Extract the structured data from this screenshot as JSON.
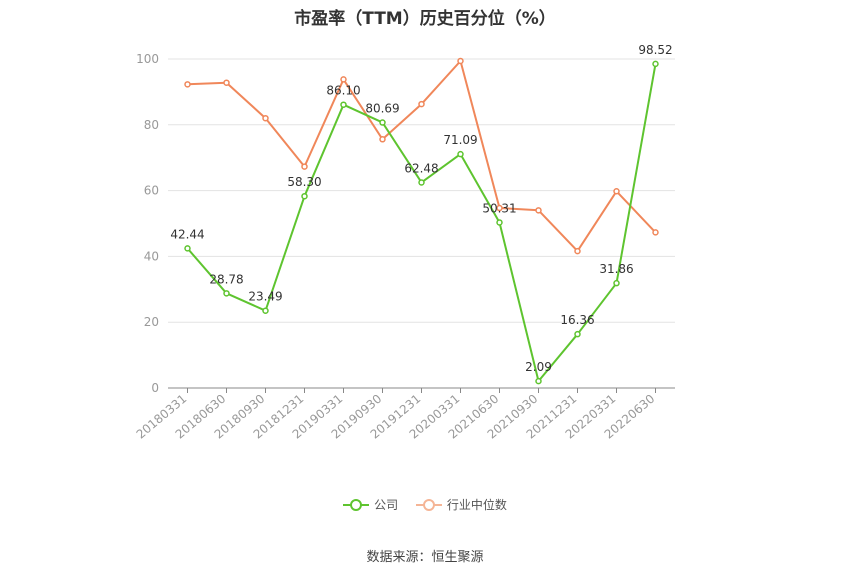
{
  "chart_data": {
    "type": "line",
    "title": "市盈率（TTM）历史百分位（%）",
    "xlabel": "",
    "ylabel": "",
    "ylim": [
      0,
      100
    ],
    "yticks": [
      0,
      20,
      40,
      60,
      80,
      100
    ],
    "grid": true,
    "legend_position": "bottom",
    "categories": [
      "20180331",
      "20180630",
      "20180930",
      "20181231",
      "20190331",
      "20190930",
      "20191231",
      "20200331",
      "20210630",
      "20210930",
      "20211231",
      "20220331",
      "20220630"
    ],
    "series": [
      {
        "name": "公司",
        "color": "#5ec42f",
        "values": [
          42.44,
          28.78,
          23.49,
          58.3,
          86.1,
          80.69,
          62.48,
          71.09,
          50.31,
          2.09,
          16.36,
          31.86,
          98.52
        ],
        "labels": [
          "42.44",
          "28.78",
          "23.49",
          "58.30",
          "86.10",
          "80.69",
          "62.48",
          "71.09",
          "50.31",
          "2.09",
          "16.36",
          "31.86",
          "98.52"
        ]
      },
      {
        "name": "行业中位数",
        "color": "#f0875a",
        "values": [
          92.3,
          92.8,
          82.0,
          67.3,
          93.8,
          75.6,
          86.3,
          99.4,
          54.7,
          54.0,
          41.6,
          59.8,
          47.3
        ]
      }
    ]
  },
  "source": "数据来源：恒生聚源"
}
